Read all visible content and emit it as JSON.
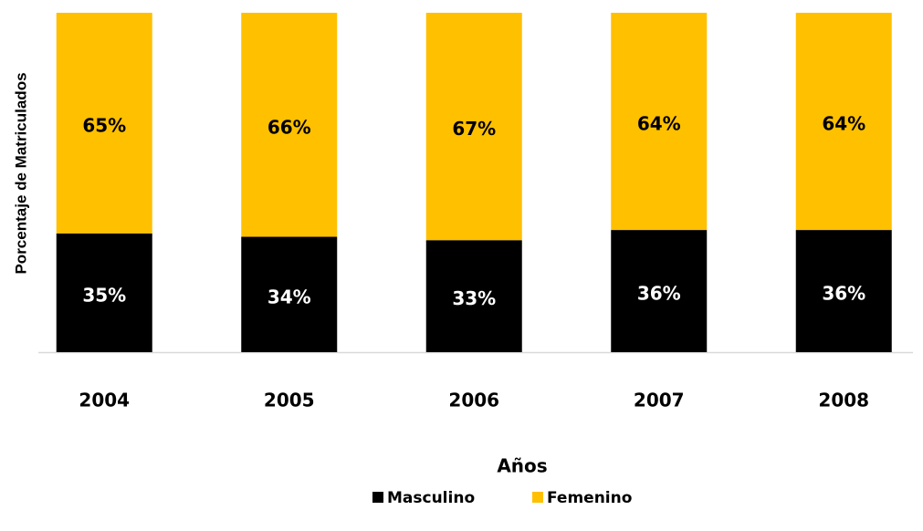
{
  "chart_data": {
    "type": "bar",
    "stacked": true,
    "xlabel": "Años",
    "ylabel": "Porcentaje de Matriculados",
    "categories": [
      "2004",
      "2005",
      "2006",
      "2007",
      "2008"
    ],
    "series": [
      {
        "name": "Masculino",
        "color": "#000000",
        "label_color": "#ffffff",
        "values": [
          35,
          34,
          33,
          36,
          36
        ],
        "value_labels": [
          "35%",
          "34%",
          "33%",
          "36%",
          "36%"
        ]
      },
      {
        "name": "Femenino",
        "color": "#ffc000",
        "label_color": "#000000",
        "values": [
          65,
          66,
          67,
          64,
          64
        ],
        "value_labels": [
          "65%",
          "66%",
          "67%",
          "64%",
          "64%"
        ]
      }
    ],
    "ylim": [
      0,
      100
    ],
    "legend": "bottom"
  }
}
